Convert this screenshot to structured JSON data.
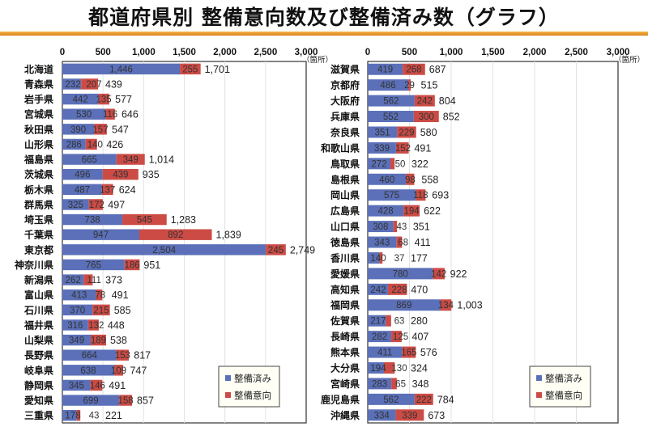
{
  "page": {
    "title": "都道府県別 整備意向数及び整備済み数（グラフ）"
  },
  "colors": {
    "done": "#5b70b8",
    "intent": "#cc4b45",
    "grid": "#e2e2e2",
    "rule": "#e08c22"
  },
  "chart_data": [
    {
      "type": "bar",
      "orientation": "horizontal",
      "stacked": true,
      "title": "",
      "xlabel": "",
      "unit_label": "（箇所）",
      "xlim": [
        0,
        3000
      ],
      "xticks": [
        0,
        500,
        1000,
        1500,
        2000,
        2500,
        3000
      ],
      "xtick_labels": [
        "0",
        "500",
        "1,000",
        "1,500",
        "2,000",
        "2,500",
        "3,000"
      ],
      "grid": true,
      "legend_position": "bottom-right",
      "categories": [
        "北海道",
        "青森県",
        "岩手県",
        "宮城県",
        "秋田県",
        "山形県",
        "福島県",
        "茨城県",
        "栃木県",
        "群馬県",
        "埼玉県",
        "千葉県",
        "東京都",
        "神奈川県",
        "新潟県",
        "富山県",
        "石川県",
        "福井県",
        "山梨県",
        "長野県",
        "岐阜県",
        "静岡県",
        "愛知県",
        "三重県"
      ],
      "series": [
        {
          "name": "整備済み",
          "values": [
            1446,
            232,
            442,
            530,
            390,
            286,
            665,
            496,
            487,
            325,
            738,
            947,
            2504,
            765,
            262,
            413,
            370,
            316,
            349,
            664,
            638,
            345,
            699,
            178
          ]
        },
        {
          "name": "整備意向",
          "values": [
            255,
            207,
            135,
            116,
            157,
            140,
            349,
            439,
            137,
            172,
            545,
            892,
            245,
            186,
            111,
            78,
            215,
            132,
            189,
            153,
            109,
            146,
            158,
            43
          ]
        }
      ],
      "totals": [
        1701,
        439,
        577,
        646,
        547,
        426,
        1014,
        935,
        624,
        497,
        1283,
        1839,
        2749,
        951,
        373,
        491,
        585,
        448,
        538,
        817,
        747,
        491,
        857,
        221
      ]
    },
    {
      "type": "bar",
      "orientation": "horizontal",
      "stacked": true,
      "title": "",
      "xlabel": "",
      "unit_label": "（箇所）",
      "xlim": [
        0,
        3000
      ],
      "xticks": [
        0,
        500,
        1000,
        1500,
        2000,
        2500,
        3000
      ],
      "xtick_labels": [
        "0",
        "500",
        "1,000",
        "1,500",
        "2,000",
        "2,500",
        "3,000"
      ],
      "grid": true,
      "legend_position": "bottom-right",
      "categories": [
        "滋賀県",
        "京都府",
        "大阪府",
        "兵庫県",
        "奈良県",
        "和歌山県",
        "鳥取県",
        "島根県",
        "岡山県",
        "広島県",
        "山口県",
        "徳島県",
        "香川県",
        "愛媛県",
        "高知県",
        "福岡県",
        "佐賀県",
        "長崎県",
        "熊本県",
        "大分県",
        "宮崎県",
        "鹿児島県",
        "沖縄県"
      ],
      "series": [
        {
          "name": "整備済み",
          "values": [
            419,
            486,
            562,
            552,
            351,
            339,
            272,
            460,
            575,
            428,
            308,
            343,
            140,
            780,
            242,
            869,
            217,
            282,
            411,
            194,
            283,
            562,
            334
          ]
        },
        {
          "name": "整備意向",
          "values": [
            268,
            29,
            242,
            300,
            229,
            152,
            50,
            98,
            118,
            194,
            43,
            68,
            37,
            142,
            228,
            134,
            63,
            125,
            165,
            130,
            65,
            222,
            339
          ]
        }
      ],
      "totals": [
        687,
        515,
        804,
        852,
        580,
        491,
        322,
        558,
        693,
        622,
        351,
        411,
        177,
        922,
        470,
        1003,
        280,
        407,
        576,
        324,
        348,
        784,
        673
      ]
    }
  ]
}
